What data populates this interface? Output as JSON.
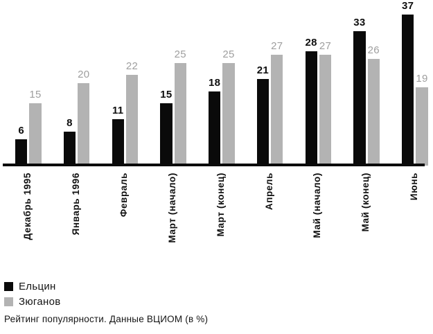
{
  "chart_data": {
    "type": "bar",
    "categories": [
      "Декабрь 1995",
      "Январь 1996",
      "Февраль",
      "Март (начало)",
      "Март (конец)",
      "Апрель",
      "Май (начало)",
      "Май (конец)",
      "Июнь"
    ],
    "series": [
      {
        "name": "Ельцин",
        "color": "#0a0a0a",
        "label_color": "#0f0f0f",
        "values": [
          6,
          8,
          11,
          15,
          18,
          21,
          28,
          33,
          37
        ]
      },
      {
        "name": "Зюганов",
        "color": "#b3b3b3",
        "label_color": "#9e9e9e",
        "values": [
          15,
          20,
          22,
          25,
          25,
          27,
          27,
          26,
          19
        ]
      }
    ],
    "title": "",
    "xlabel": "",
    "ylabel": "",
    "ylim": [
      0,
      40
    ],
    "grid": false,
    "axis_color": "#0a0a0a",
    "legend_position": "bottom-left",
    "value_labels_shown": true,
    "caption": "Рейтинг популярности. Данные ВЦИОМ (в %)"
  },
  "legend": {
    "items": [
      {
        "label": "Ельцин",
        "color": "#0a0a0a"
      },
      {
        "label": "Зюганов",
        "color": "#b3b3b3"
      }
    ]
  },
  "caption": {
    "text": "Рейтинг популярности. Данные ВЦИОМ (в %)"
  }
}
